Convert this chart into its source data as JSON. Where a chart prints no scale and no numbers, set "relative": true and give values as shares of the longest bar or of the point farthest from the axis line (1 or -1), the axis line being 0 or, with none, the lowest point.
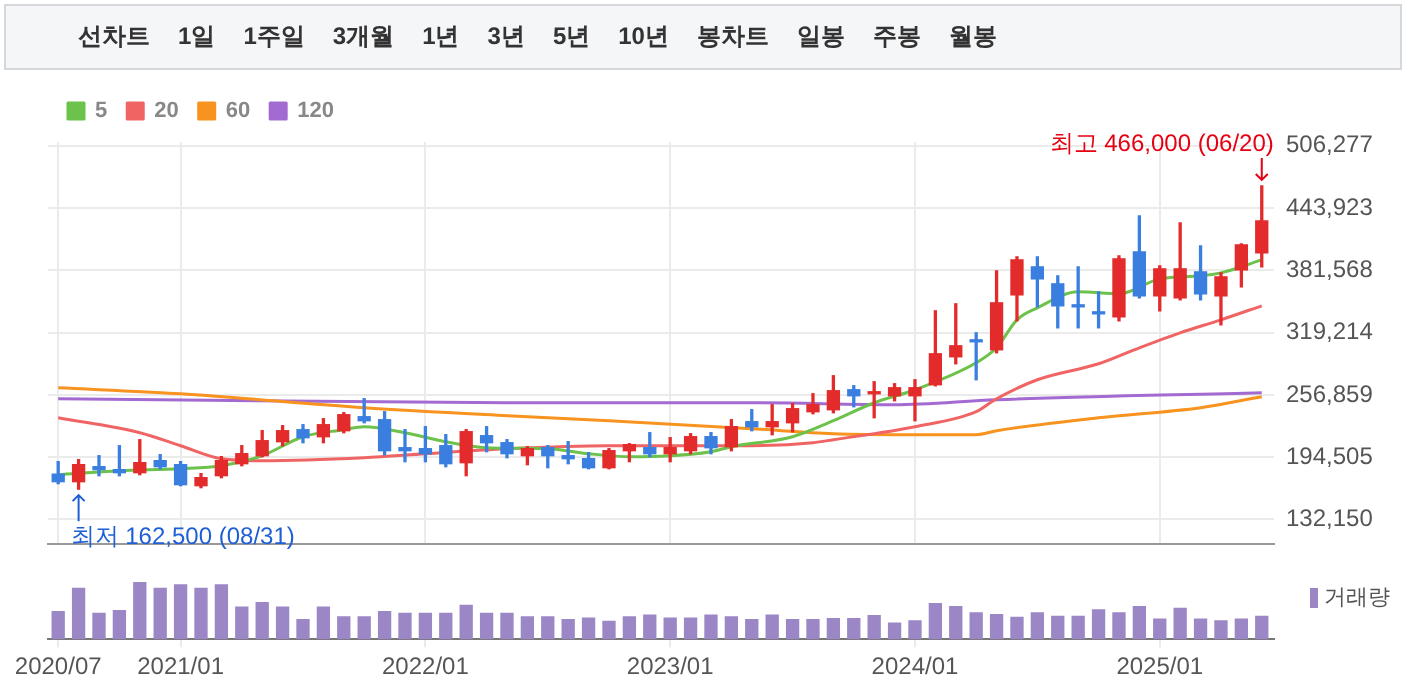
{
  "chart_data": [
    {
      "type": "candlestick",
      "annotations": [
        "선차트",
        "1일",
        "1주일",
        "3개월",
        "1년",
        "3년",
        "5년",
        "10년",
        "봉차트",
        "일봉",
        "주봉",
        "월봉",
        {
          "text": "최고 466,000 (06/20)",
          "x": "2025-06",
          "y": 466000
        },
        {
          "text": "최저 162,500 (08/31)",
          "x": "2020-08",
          "y": 162500
        }
      ],
      "x": [
        "2020-07",
        "2020-08",
        "2020-09",
        "2020-10",
        "2020-11",
        "2020-12",
        "2021-01",
        "2021-02",
        "2021-03",
        "2021-04",
        "2021-05",
        "2021-06",
        "2021-07",
        "2021-08",
        "2021-09",
        "2021-10",
        "2021-11",
        "2021-12",
        "2022-01",
        "2022-02",
        "2022-03",
        "2022-04",
        "2022-05",
        "2022-06",
        "2022-07",
        "2022-08",
        "2022-09",
        "2022-10",
        "2022-11",
        "2022-12",
        "2023-01",
        "2023-02",
        "2023-03",
        "2023-04",
        "2023-05",
        "2023-06",
        "2023-07",
        "2023-08",
        "2023-09",
        "2023-10",
        "2023-11",
        "2023-12",
        "2024-01",
        "2024-02",
        "2024-03",
        "2024-04",
        "2024-05",
        "2024-06",
        "2024-07",
        "2024-08",
        "2024-09",
        "2024-10",
        "2024-11",
        "2024-12",
        "2025-01",
        "2025-02",
        "2025-03",
        "2025-04",
        "2025-05",
        "2025-06"
      ],
      "ohlc": [
        [
          177500,
          190000,
          168000,
          170000
        ],
        [
          170000,
          192000,
          162500,
          187000
        ],
        [
          185000,
          196000,
          176000,
          182000
        ],
        [
          182000,
          206000,
          176000,
          179000
        ],
        [
          179000,
          212000,
          177000,
          189000
        ],
        [
          191000,
          197000,
          183000,
          185000
        ],
        [
          187000,
          190000,
          166000,
          167000
        ],
        [
          166000,
          178000,
          164000,
          174000
        ],
        [
          176000,
          195000,
          174000,
          191000
        ],
        [
          188000,
          206000,
          186000,
          198000
        ],
        [
          196000,
          221000,
          195000,
          211000
        ],
        [
          210000,
          226000,
          206000,
          221000
        ],
        [
          222000,
          227000,
          209000,
          214000
        ],
        [
          215000,
          233000,
          209000,
          227000
        ],
        [
          221000,
          239000,
          219000,
          237000
        ],
        [
          235000,
          253000,
          229000,
          231000
        ],
        [
          232000,
          240000,
          197000,
          201000
        ],
        [
          204000,
          222000,
          190000,
          201000
        ],
        [
          203000,
          225000,
          190000,
          198000
        ],
        [
          206000,
          217000,
          185000,
          188000
        ],
        [
          189000,
          222000,
          176000,
          220000
        ],
        [
          216000,
          225000,
          200000,
          209000
        ],
        [
          209000,
          212000,
          194000,
          198000
        ],
        [
          196000,
          205000,
          187000,
          203000
        ],
        [
          204000,
          206000,
          184000,
          196000
        ],
        [
          196000,
          210000,
          188000,
          193000
        ],
        [
          193000,
          199000,
          183000,
          184000
        ],
        [
          184000,
          203000,
          183000,
          201000
        ],
        [
          201000,
          208000,
          190000,
          207000
        ],
        [
          204000,
          219000,
          195000,
          198000
        ],
        [
          198000,
          214000,
          190000,
          204000
        ],
        [
          201000,
          218000,
          198000,
          215000
        ],
        [
          215000,
          219000,
          198000,
          204000
        ],
        [
          205000,
          232000,
          201000,
          225000
        ],
        [
          230000,
          242000,
          221000,
          225000
        ],
        [
          225000,
          247000,
          217000,
          230000
        ],
        [
          229000,
          248000,
          220000,
          243000
        ],
        [
          240000,
          258000,
          238000,
          247000
        ],
        [
          242000,
          276000,
          239000,
          261000
        ],
        [
          262000,
          266000,
          245000,
          256000
        ],
        [
          258000,
          270000,
          234000,
          260000
        ],
        [
          256000,
          268000,
          251000,
          264000
        ],
        [
          256000,
          272000,
          231000,
          264000
        ],
        [
          267000,
          341000,
          266000,
          298000
        ],
        [
          295000,
          348000,
          288000,
          306000
        ],
        [
          312000,
          319000,
          272000,
          310000
        ],
        [
          302000,
          381000,
          299000,
          349000
        ],
        [
          357000,
          395000,
          331000,
          392000
        ],
        [
          385000,
          395000,
          345000,
          373000
        ],
        [
          368000,
          376000,
          324000,
          346000
        ],
        [
          347000,
          385000,
          324000,
          345000
        ],
        [
          339000,
          360000,
          324000,
          338000
        ],
        [
          335000,
          396000,
          331000,
          393000
        ],
        [
          400000,
          436000,
          354000,
          356000
        ],
        [
          356000,
          386000,
          341000,
          383000
        ],
        [
          354000,
          429000,
          352000,
          383000
        ],
        [
          380000,
          406000,
          352000,
          358000
        ],
        [
          356000,
          379000,
          327000,
          375000
        ],
        [
          382000,
          408000,
          365000,
          407000
        ],
        [
          399000,
          466000,
          385000,
          431000
        ]
      ],
      "colors": [
        "#3a7fe0",
        "#e32b2b",
        "#3a7fe0",
        "#3a7fe0",
        "#e32b2b",
        "#3a7fe0",
        "#3a7fe0",
        "#e32b2b",
        "#e32b2b",
        "#e32b2b",
        "#e32b2b",
        "#e32b2b",
        "#3a7fe0",
        "#e32b2b",
        "#e32b2b",
        "#3a7fe0",
        "#3a7fe0",
        "#3a7fe0",
        "#3a7fe0",
        "#3a7fe0",
        "#e32b2b",
        "#3a7fe0",
        "#3a7fe0",
        "#e32b2b",
        "#3a7fe0",
        "#3a7fe0",
        "#3a7fe0",
        "#e32b2b",
        "#e32b2b",
        "#3a7fe0",
        "#e32b2b",
        "#e32b2b",
        "#3a7fe0",
        "#e32b2b",
        "#3a7fe0",
        "#e32b2b",
        "#e32b2b",
        "#e32b2b",
        "#e32b2b",
        "#3a7fe0",
        "#e32b2b",
        "#e32b2b",
        "#e32b2b",
        "#e32b2b",
        "#e32b2b",
        "#3a7fe0",
        "#e32b2b",
        "#e32b2b",
        "#3a7fe0",
        "#3a7fe0",
        "#3a7fe0",
        "#3a7fe0",
        "#e32b2b",
        "#3a7fe0",
        "#e32b2b",
        "#e32b2b",
        "#3a7fe0",
        "#e32b2b",
        "#e32b2b",
        "#e32b2b"
      ],
      "series": [
        {
          "type": "line",
          "name": "5",
          "color": "#6cc24a",
          "x": [
            "2020-07",
            "2020-10",
            "2021-01",
            "2021-03",
            "2021-05",
            "2021-07",
            "2021-09",
            "2021-10",
            "2021-12",
            "2022-02",
            "2022-04",
            "2022-07",
            "2022-09",
            "2022-11",
            "2023-01",
            "2023-03",
            "2023-04",
            "2023-07",
            "2023-09",
            "2023-11",
            "2024-01",
            "2024-04",
            "2024-05",
            "2024-06",
            "2024-07",
            "2024-09",
            "2024-11",
            "2025-01",
            "2025-03",
            "2025-04",
            "2025-06"
          ],
          "values": [
            177000,
            181000,
            183000,
            186000,
            196000,
            215000,
            222000,
            225000,
            219000,
            210000,
            204000,
            203000,
            198000,
            195000,
            196000,
            200000,
            205000,
            215000,
            231000,
            249000,
            262000,
            289000,
            304000,
            332000,
            344000,
            360000,
            358000,
            373000,
            376000,
            379000,
            392000
          ]
        },
        {
          "type": "line",
          "name": "20",
          "color": "#f06464",
          "x": [
            "2020-07",
            "2020-11",
            "2021-01",
            "2021-03",
            "2021-05",
            "2021-10",
            "2022-01",
            "2022-05",
            "2022-10",
            "2023-05",
            "2023-08",
            "2023-09",
            "2024-01",
            "2024-04",
            "2024-05",
            "2024-07",
            "2024-10",
            "2024-12",
            "2025-02",
            "2025-04",
            "2025-06"
          ],
          "values": [
            234000,
            219000,
            206000,
            193000,
            191000,
            194000,
            198000,
            203000,
            206000,
            206000,
            209000,
            212000,
            225000,
            240000,
            253000,
            272000,
            288000,
            304000,
            319000,
            332000,
            346000
          ]
        },
        {
          "type": "line",
          "name": "60",
          "color": "#f7931e",
          "x": [
            "2020-07",
            "2021-01",
            "2021-10",
            "2022-05",
            "2022-10",
            "2023-05",
            "2023-09",
            "2024-01",
            "2024-04",
            "2024-05",
            "2024-10",
            "2025-03",
            "2025-06"
          ],
          "values": [
            264000,
            258000,
            244000,
            236000,
            231000,
            223000,
            218000,
            217000,
            217000,
            221000,
            234000,
            244000,
            255000
          ]
        },
        {
          "type": "line",
          "name": "120",
          "color": "#a36bd1",
          "x": [
            "2020-07",
            "2022-05",
            "2023-05",
            "2023-12",
            "2024-05",
            "2025-06"
          ],
          "values": [
            253000,
            249000,
            249000,
            247000,
            252000,
            259000
          ]
        }
      ],
      "xlim": [
        "2020-06-16",
        "2025-06-19"
      ],
      "xticks": [
        {
          "value": "2020-07",
          "label": null
        },
        {
          "value": "2021-01",
          "label": null
        },
        {
          "value": "2022-01",
          "label": null
        },
        {
          "value": "2023-01",
          "label": null
        },
        {
          "value": "2024-01",
          "label": null
        },
        {
          "value": "2025-01",
          "label": null
        }
      ],
      "ylim": [
        108000,
        510000
      ],
      "yticks": [
        {
          "value": 132150,
          "label": "132,150"
        },
        {
          "value": 194505,
          "label": "194,505"
        },
        {
          "value": 256859,
          "label": "256,859"
        },
        {
          "value": 319214,
          "label": "319,214"
        },
        {
          "value": 381568,
          "label": "381,568"
        },
        {
          "value": 443923,
          "label": "443,923"
        },
        {
          "value": 506277,
          "label": "506,277"
        }
      ],
      "grid": true,
      "legend": "top left",
      "tick_labels": "y"
    },
    {
      "type": "bar",
      "relative": true,
      "legend": "top right",
      "x": [
        "2020-07",
        "2020-08",
        "2020-09",
        "2020-10",
        "2020-11",
        "2020-12",
        "2021-01",
        "2021-02",
        "2021-03",
        "2021-04",
        "2021-05",
        "2021-06",
        "2021-07",
        "2021-08",
        "2021-09",
        "2021-10",
        "2021-11",
        "2021-12",
        "2022-01",
        "2022-02",
        "2022-03",
        "2022-04",
        "2022-05",
        "2022-06",
        "2022-07",
        "2022-08",
        "2022-09",
        "2022-10",
        "2022-11",
        "2022-12",
        "2023-01",
        "2023-02",
        "2023-03",
        "2023-04",
        "2023-05",
        "2023-06",
        "2023-07",
        "2023-08",
        "2023-09",
        "2023-10",
        "2023-11",
        "2023-12",
        "2024-01",
        "2024-02",
        "2024-03",
        "2024-04",
        "2024-05",
        "2024-06",
        "2024-07",
        "2024-08",
        "2024-09",
        "2024-10",
        "2024-11",
        "2024-12",
        "2025-01",
        "2025-02",
        "2025-03",
        "2025-04",
        "2025-05",
        "2025-06"
      ],
      "series": [
        {
          "name": "거래량",
          "color": "#9b86c6",
          "values": [
            0.48,
            0.89,
            0.45,
            0.5,
            1,
            0.89,
            0.95,
            0.89,
            0.95,
            0.56,
            0.64,
            0.56,
            0.34,
            0.56,
            0.39,
            0.39,
            0.48,
            0.45,
            0.45,
            0.45,
            0.59,
            0.45,
            0.45,
            0.39,
            0.39,
            0.34,
            0.37,
            0.31,
            0.39,
            0.42,
            0.37,
            0.37,
            0.42,
            0.39,
            0.34,
            0.42,
            0.34,
            0.34,
            0.36,
            0.36,
            0.41,
            0.28,
            0.32,
            0.62,
            0.57,
            0.46,
            0.43,
            0.38,
            0.46,
            0.4,
            0.4,
            0.51,
            0.46,
            0.57,
            0.35,
            0.54,
            0.35,
            0.32,
            0.35,
            0.4
          ]
        }
      ],
      "xlim": [
        "2020-06-16",
        "2025-06-19"
      ],
      "xticks": [
        {
          "value": "2020-07",
          "label": "2020/07"
        },
        {
          "value": "2021-01",
          "label": "2021/01"
        },
        {
          "value": "2022-01",
          "label": "2022/01"
        },
        {
          "value": "2023-01",
          "label": "2023/01"
        },
        {
          "value": "2024-01",
          "label": "2024/01"
        },
        {
          "value": "2025-01",
          "label": "2025/01"
        }
      ],
      "tick_labels": "x"
    }
  ]
}
